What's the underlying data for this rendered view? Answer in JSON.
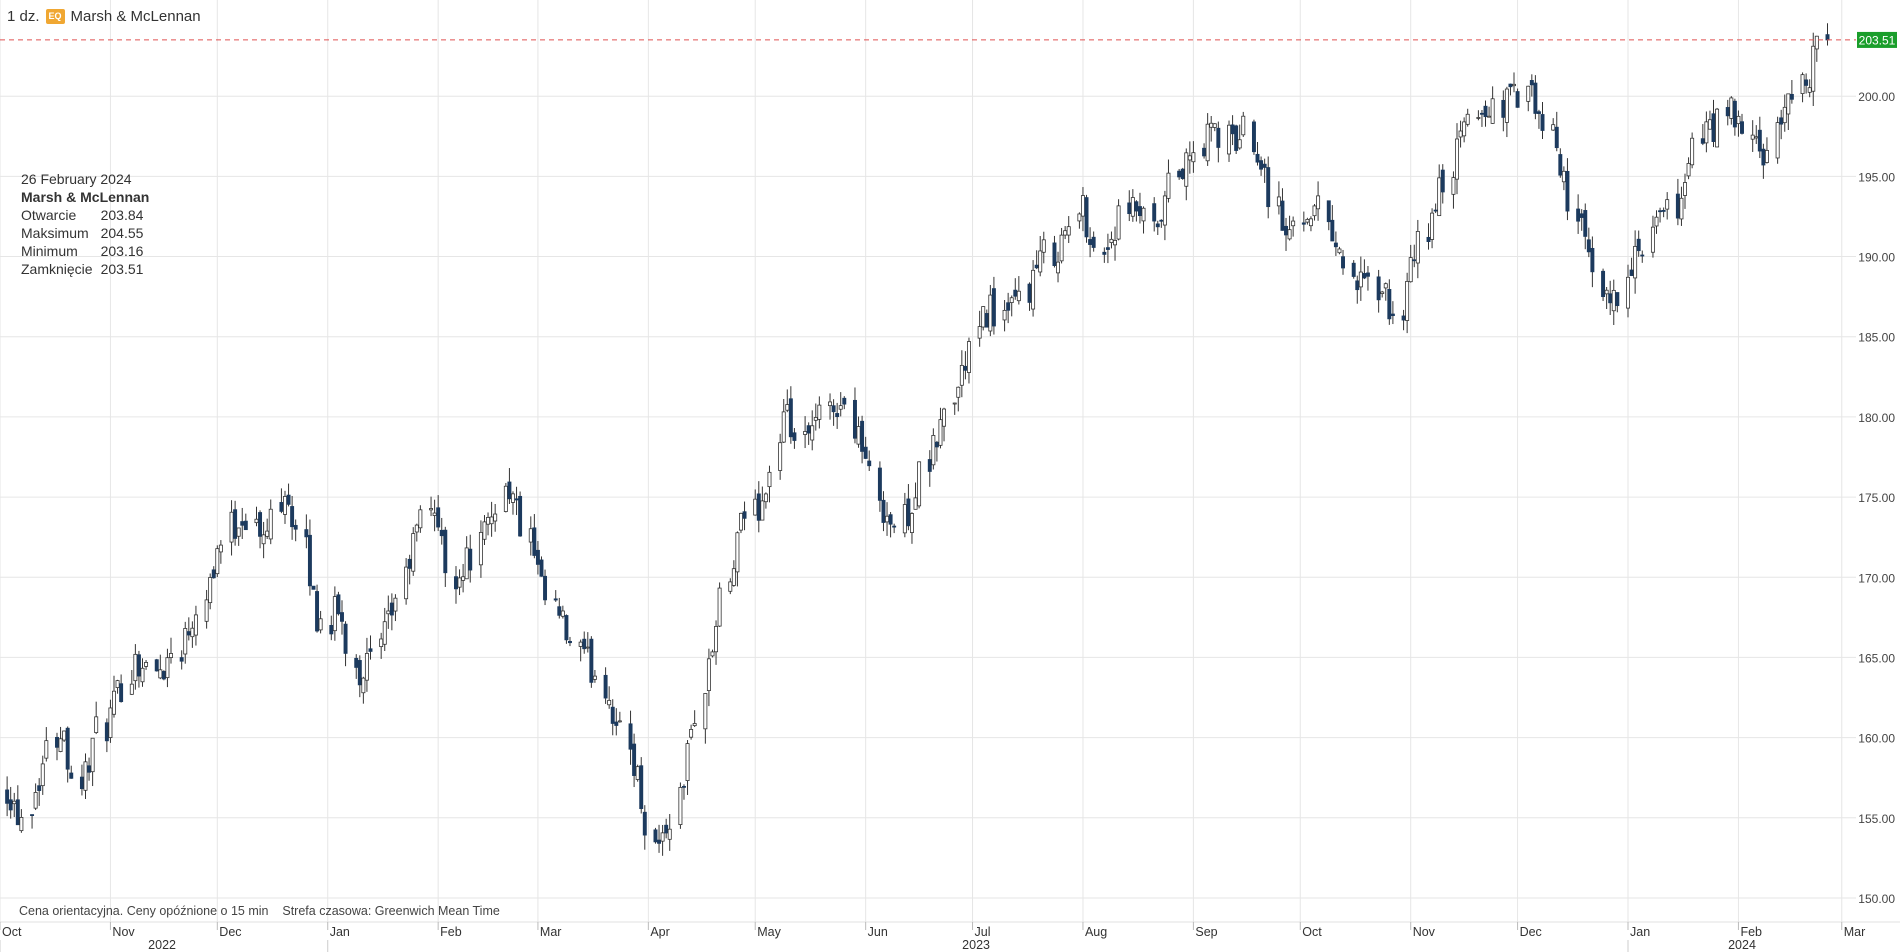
{
  "header": {
    "interval": "1 dz.",
    "badge": "EQ",
    "instrument": "Marsh & McLennan"
  },
  "info_box": {
    "date": "26 February 2024",
    "name": "Marsh & McLennan",
    "rows": [
      {
        "label": "Otwarcie",
        "value": "203.84"
      },
      {
        "label": "Maksimum",
        "value": "204.55"
      },
      {
        "label": "Minimum",
        "value": "203.16"
      },
      {
        "label": "Zamknięcie",
        "value": "203.51"
      }
    ]
  },
  "footer": {
    "note": "Cena orientacyjna. Ceny opóźnione o 15 min",
    "timezone": "Strefa czasowa: Greenwich Mean Time"
  },
  "colors": {
    "bear": "#1c3a5e",
    "bull_fill": "#ffffff",
    "wick": "#333333",
    "grid": "#e6e6e6",
    "last_line": "#e05252",
    "last_tag": "#1a9e2b"
  },
  "chart_data": {
    "type": "candlestick",
    "title": "Marsh & McLennan",
    "ylim": [
      148.5,
      206
    ],
    "y_ticks": [
      "150.00",
      "155.00",
      "160.00",
      "165.00",
      "170.00",
      "175.00",
      "180.00",
      "185.00",
      "190.00",
      "195.00",
      "200.00"
    ],
    "last_price": "203.51",
    "x_month_labels": [
      "Oct",
      "Nov",
      "Dec",
      "Jan",
      "Feb",
      "Mar",
      "Apr",
      "May",
      "Jun",
      "Jul",
      "Aug",
      "Sep",
      "Oct",
      "Nov",
      "Dec",
      "Jan",
      "Feb",
      "Mar"
    ],
    "x_year_labels": [
      "2022",
      "2023",
      "2024"
    ],
    "x_range": [
      "2022-10-01",
      "2024-03-05"
    ],
    "months": [
      {
        "label": "Oct",
        "start": "2022-10-01",
        "trading_days": 21
      },
      {
        "label": "Nov",
        "start": "2022-11-01",
        "trading_days": 21
      },
      {
        "label": "Dec",
        "start": "2022-12-01",
        "trading_days": 21
      },
      {
        "label": "Jan",
        "start": "2023-01-01",
        "trading_days": 20
      },
      {
        "label": "Feb",
        "start": "2023-02-01",
        "trading_days": 19
      },
      {
        "label": "Mar",
        "start": "2023-03-01",
        "trading_days": 23
      },
      {
        "label": "Apr",
        "start": "2023-04-01",
        "trading_days": 19
      },
      {
        "label": "May",
        "start": "2023-05-01",
        "trading_days": 22
      },
      {
        "label": "Jun",
        "start": "2023-06-01",
        "trading_days": 21
      },
      {
        "label": "Jul",
        "start": "2023-07-01",
        "trading_days": 20
      },
      {
        "label": "Aug",
        "start": "2023-08-01",
        "trading_days": 23
      },
      {
        "label": "Sep",
        "start": "2023-09-01",
        "trading_days": 20
      },
      {
        "label": "Oct",
        "start": "2023-10-01",
        "trading_days": 22
      },
      {
        "label": "Nov",
        "start": "2023-11-01",
        "trading_days": 21
      },
      {
        "label": "Dec",
        "start": "2023-12-01",
        "trading_days": 20
      },
      {
        "label": "Jan",
        "start": "2024-01-01",
        "trading_days": 21
      },
      {
        "label": "Feb",
        "start": "2024-02-01",
        "trading_days": 18
      }
    ],
    "close_path": [
      157,
      155,
      158,
      161,
      157,
      160,
      162,
      165,
      164,
      165,
      167,
      170,
      173,
      174,
      172,
      176,
      172,
      167,
      168,
      164,
      165,
      168,
      172,
      175,
      170,
      171,
      173,
      176,
      173,
      169,
      167,
      165,
      164,
      161,
      158,
      153,
      155,
      160,
      165,
      170,
      174,
      175,
      180,
      178,
      180,
      181,
      179,
      175,
      173,
      175,
      178,
      181,
      184,
      187,
      186,
      188,
      190,
      191,
      193,
      190,
      192,
      193,
      191,
      195,
      196,
      198,
      197,
      198,
      195,
      191,
      193,
      193,
      190,
      188,
      188,
      186,
      190,
      193,
      196,
      199,
      199,
      200,
      200,
      198,
      195,
      191,
      187,
      188,
      190,
      192,
      193,
      197,
      198,
      199,
      197,
      196,
      200,
      201,
      203.51
    ],
    "last_candle": {
      "date": "2024-02-26",
      "open": 203.84,
      "high": 204.55,
      "low": 203.16,
      "close": 203.51
    }
  }
}
